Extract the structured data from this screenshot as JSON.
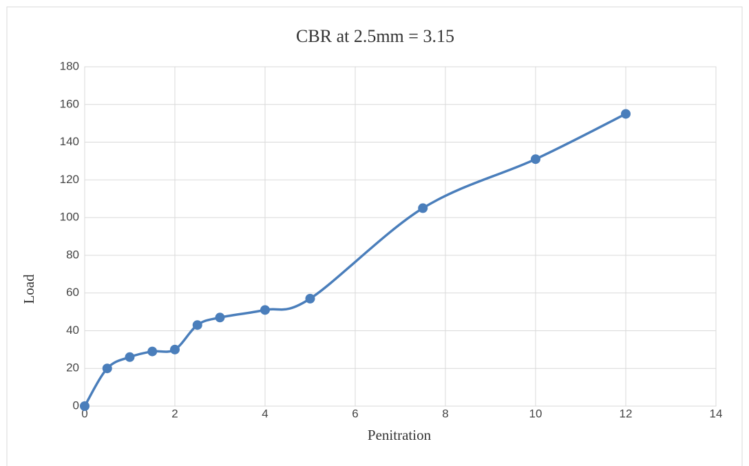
{
  "chart_data": {
    "type": "line",
    "title": "CBR at 2.5mm = 3.15",
    "x_label": "Penitration",
    "y_label": "Load",
    "x": [
      0,
      0.5,
      1,
      1.5,
      2,
      2.5,
      3,
      4,
      5,
      7.5,
      10,
      12
    ],
    "series": [
      {
        "name": "Load",
        "color": "#4a7ebb",
        "values": [
          0,
          20,
          26,
          29,
          30,
          43,
          47,
          51,
          57,
          105,
          131,
          155
        ]
      }
    ],
    "xlim": [
      0,
      14
    ],
    "xticks": [
      0,
      2,
      4,
      6,
      8,
      10,
      12,
      14
    ],
    "ylim": [
      0,
      180
    ],
    "yticks": [
      0,
      20,
      40,
      60,
      80,
      100,
      120,
      140,
      160,
      180
    ],
    "grid": true,
    "smooth": true
  }
}
